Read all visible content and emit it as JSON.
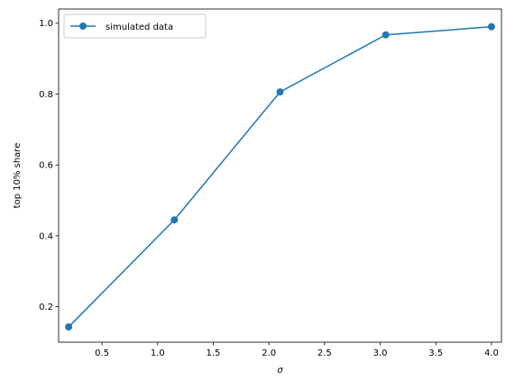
{
  "chart_data": {
    "type": "line",
    "title": "",
    "xlabel": "σ",
    "ylabel": "top 10% share",
    "xlim": [
      0.11,
      4.09
    ],
    "ylim": [
      0.1,
      1.04
    ],
    "xticks": [
      0.5,
      1.0,
      1.5,
      2.0,
      2.5,
      3.0,
      3.5,
      4.0
    ],
    "xtick_labels": [
      "0.5",
      "1.0",
      "1.5",
      "2.0",
      "2.5",
      "3.0",
      "3.5",
      "4.0"
    ],
    "yticks": [
      0.2,
      0.4,
      0.6,
      0.8,
      1.0
    ],
    "ytick_labels": [
      "0.2",
      "0.4",
      "0.6",
      "0.8",
      "1.0"
    ],
    "grid": false,
    "legend_position": "upper-left",
    "series": [
      {
        "name": "simulated data",
        "color": "#1f77b4",
        "marker": "circle",
        "x": [
          0.2,
          1.15,
          2.1,
          3.05,
          4.0
        ],
        "y": [
          0.143,
          0.445,
          0.806,
          0.967,
          0.99
        ]
      }
    ]
  }
}
